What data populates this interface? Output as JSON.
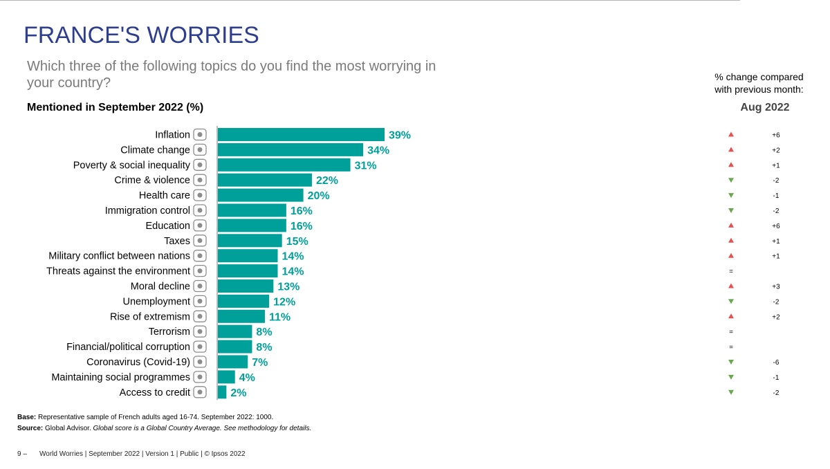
{
  "header": {
    "title": "FRANCE'S WORRIES",
    "subtitle": "Which three of the following topics do you find the most worrying in your country?",
    "mentioned": "Mentioned in September 2022 (%)"
  },
  "change_panel": {
    "label": "% change compared with previous month:",
    "month": "Aug 2022"
  },
  "chart_data": {
    "type": "bar",
    "orientation": "horizontal",
    "title": "Mentioned in September 2022 (%)",
    "categories": [
      "Inflation",
      "Climate change",
      "Poverty & social inequality",
      "Crime & violence",
      "Health care",
      "Immigration control",
      "Education",
      "Taxes",
      "Military conflict between nations",
      "Threats against the environment",
      "Moral decline",
      "Unemployment",
      "Rise of extremism",
      "Terrorism",
      "Financial/political corruption",
      "Coronavirus (Covid-19)",
      "Maintaining social programmes",
      "Access to credit"
    ],
    "values": [
      39,
      34,
      31,
      22,
      20,
      16,
      16,
      15,
      14,
      14,
      13,
      12,
      11,
      8,
      8,
      7,
      4,
      2
    ],
    "value_labels": [
      "39%",
      "34%",
      "31%",
      "22%",
      "20%",
      "16%",
      "16%",
      "15%",
      "14%",
      "14%",
      "13%",
      "12%",
      "11%",
      "8%",
      "8%",
      "7%",
      "4%",
      "2%"
    ],
    "changes": [
      "+6",
      "+2",
      "+1",
      "-2",
      "-1",
      "-2",
      "+6",
      "+1",
      "+1",
      "=",
      "+3",
      "-2",
      "+2",
      "=",
      "=",
      "-6",
      "-1",
      "-2"
    ],
    "change_directions": [
      "up",
      "up",
      "up",
      "down",
      "down",
      "down",
      "up",
      "up",
      "up",
      "none",
      "up",
      "down",
      "up",
      "none",
      "none",
      "down",
      "down",
      "down"
    ],
    "icons": [
      "inflation-icon",
      "climate-change-icon",
      "poverty-icon",
      "crime-icon",
      "health-care-icon",
      "immigration-icon",
      "education-icon",
      "taxes-icon",
      "military-conflict-icon",
      "environment-icon",
      "moral-decline-icon",
      "unemployment-icon",
      "extremism-icon",
      "terrorism-icon",
      "corruption-icon",
      "coronavirus-icon",
      "social-programmes-icon",
      "credit-icon"
    ],
    "xlim": [
      0,
      39
    ],
    "colors": {
      "bar": "#00a09a",
      "label": "#00a09a",
      "up": "#e8504f",
      "down": "#6aa84f",
      "icon": "#8c8c8c",
      "axis": "#7a7a7a"
    }
  },
  "footnotes": {
    "base_label": "Base:",
    "base_text": " Representative sample of French adults aged 16-74. September 2022: 1000.",
    "source_label": "Source:",
    "source_text": " Global Advisor. ",
    "source_italic": "Global score is a Global Country Average. See methodology for details."
  },
  "footer": {
    "page": "9 –",
    "text": "World Worries | September 2022 |  Version 1  |  Public | © Ipsos 2022"
  }
}
